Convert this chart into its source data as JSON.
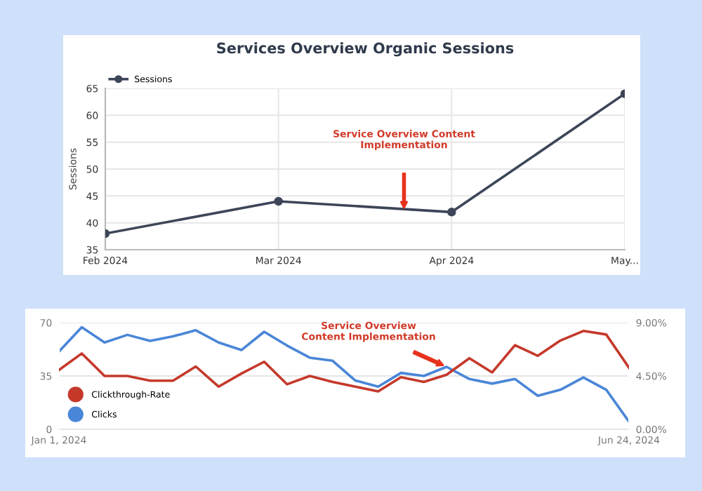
{
  "chart_data": [
    {
      "type": "line",
      "title": "Services Overview Organic Sessions",
      "ylabel": "Sessions",
      "categories": [
        "Feb 2024",
        "Mar 2024",
        "Apr 2024",
        "May..."
      ],
      "series": [
        {
          "name": "Sessions",
          "color": "#3d4658",
          "values": [
            38,
            44,
            42,
            64
          ]
        }
      ],
      "ylim": [
        35,
        65
      ],
      "yticks": [
        35,
        40,
        45,
        50,
        55,
        60,
        65
      ],
      "grid": true,
      "legend": "top left",
      "marker": "circle",
      "line_style": "solid",
      "annotations": [
        "Service Overview Content\nImplementation"
      ]
    },
    {
      "type": "line",
      "x": [
        "2024-01-01",
        "2024-01-08",
        "2024-01-15",
        "2024-01-22",
        "2024-01-29",
        "2024-02-05",
        "2024-02-12",
        "2024-02-19",
        "2024-02-26",
        "2024-03-04",
        "2024-03-11",
        "2024-03-18",
        "2024-03-25",
        "2024-04-01",
        "2024-04-08",
        "2024-04-15",
        "2024-04-22",
        "2024-04-29",
        "2024-05-06",
        "2024-05-13",
        "2024-05-20",
        "2024-05-27",
        "2024-06-03",
        "2024-06-10",
        "2024-06-17",
        "2024-06-24"
      ],
      "series": [
        {
          "name": "Clickthrough-Rate",
          "color": "#c5392b",
          "axis": "y2",
          "values": [
            5.0,
            6.4,
            4.5,
            4.5,
            4.1,
            4.1,
            5.3,
            3.6,
            4.7,
            5.7,
            3.8,
            4.5,
            4.0,
            3.6,
            3.2,
            4.4,
            4.0,
            4.6,
            6.0,
            4.8,
            7.1,
            6.2,
            7.5,
            8.3,
            8.0,
            5.2
          ]
        },
        {
          "name": "Clicks",
          "color": "#4a86d8",
          "values": [
            51,
            67,
            57,
            62,
            58,
            61,
            65,
            57,
            52,
            64,
            55,
            47,
            45,
            32,
            28,
            37,
            35,
            41,
            33,
            30,
            33,
            22,
            26,
            34,
            26,
            5
          ]
        }
      ],
      "ylim": [
        0,
        70
      ],
      "yticks": [
        0,
        35,
        70
      ],
      "y2lim": [
        0,
        9
      ],
      "y2ticks": [
        {
          "value": 0,
          "label": "0.00%"
        },
        {
          "value": 4.5,
          "label": "4.50%"
        },
        {
          "value": 9,
          "label": "9.00%"
        }
      ],
      "xlim": [
        "2024-01-01",
        "2024-06-24"
      ],
      "xticks": [
        {
          "value": "2024-01-01",
          "label": "Jan 1, 2024"
        },
        {
          "value": "2024-06-24",
          "label": "Jun 24, 2024"
        }
      ],
      "grid": "y",
      "legend": "bottom left",
      "marker": "none",
      "line_style": "solid",
      "annotations": [
        {
          "text": "Service Overview\nContent Implementation",
          "x": "2024-04-29",
          "y": 41
        }
      ]
    }
  ]
}
